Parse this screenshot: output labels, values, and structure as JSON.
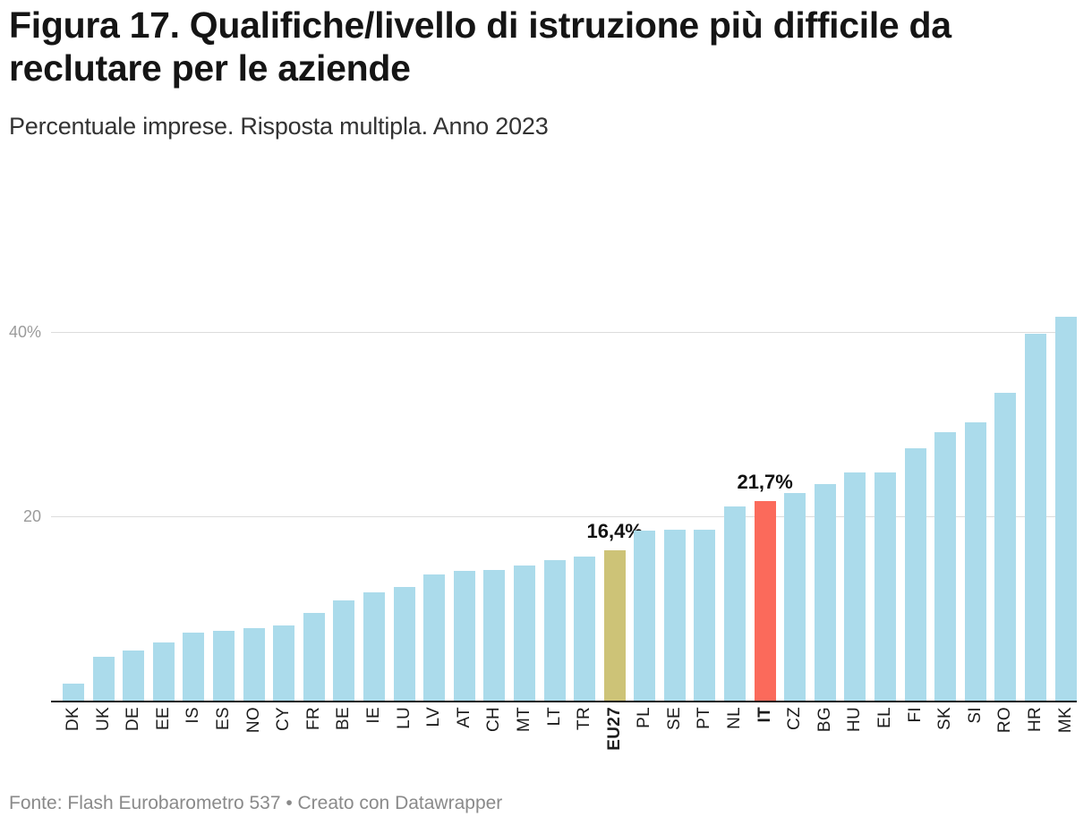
{
  "header": {
    "title": "Figura 17. Qualifiche/livello di istruzione più difficile da reclutare per le aziende",
    "subtitle": "Percentuale imprese. Risposta multipla. Anno 2023"
  },
  "footer": {
    "source": "Fonte: Flash Eurobarometro 537 • Creato con Datawrapper"
  },
  "colors": {
    "bar_default": "#abdbeb",
    "bar_eu27": "#cdc377",
    "bar_italy": "#fb6a5b",
    "axis_line": "#141414",
    "gridline": "#dcdcdc",
    "tick_label": "#9b9b9b",
    "category_label": "#1c1c1c",
    "annotation_text": "#111111"
  },
  "chart_data": {
    "type": "bar",
    "title": "Figura 17. Qualifiche/livello di istruzione più difficile da reclutare per le aziende",
    "subtitle": "Percentuale imprese. Risposta multipla. Anno 2023",
    "source": "Fonte: Flash Eurobarometro 537 • Creato con Datawrapper",
    "unit": "%",
    "ylim": [
      0,
      43.8
    ],
    "grid": true,
    "legend": "none",
    "y_ticks": [
      {
        "value": 20,
        "label": "20"
      },
      {
        "value": 40,
        "label": "40%"
      }
    ],
    "categories": [
      "DK",
      "UK",
      "DE",
      "EE",
      "IS",
      "ES",
      "NO",
      "CY",
      "FR",
      "BE",
      "IE",
      "LU",
      "LV",
      "AT",
      "CH",
      "MT",
      "LT",
      "TR",
      "EU27",
      "PL",
      "SE",
      "PT",
      "NL",
      "IT",
      "CZ",
      "BG",
      "HU",
      "EL",
      "FI",
      "SK",
      "SI",
      "RO",
      "HR",
      "MK"
    ],
    "values": [
      1.9,
      4.8,
      5.5,
      6.3,
      7.4,
      7.6,
      7.9,
      8.2,
      9.5,
      10.9,
      11.8,
      12.4,
      13.7,
      14.1,
      14.2,
      14.7,
      15.3,
      15.7,
      16.4,
      18.5,
      18.6,
      18.6,
      21.1,
      21.7,
      22.6,
      23.6,
      24.8,
      24.8,
      27.5,
      29.2,
      30.3,
      33.5,
      39.9,
      41.8
    ],
    "highlights": [
      {
        "category": "EU27",
        "color_key": "bar_eu27",
        "annotation": "16,4%",
        "bold_label": true
      },
      {
        "category": "IT",
        "color_key": "bar_italy",
        "annotation": "21,7%",
        "bold_label": true
      }
    ]
  }
}
